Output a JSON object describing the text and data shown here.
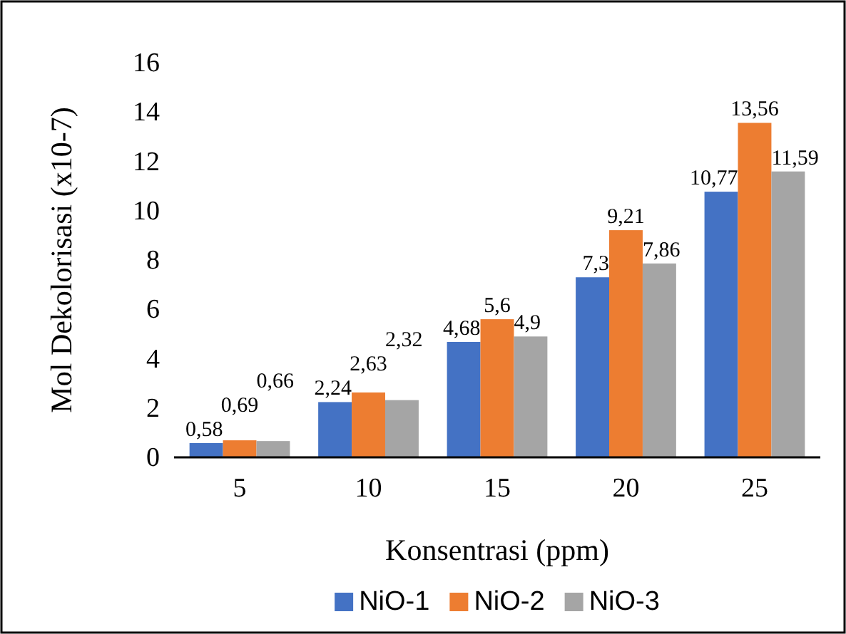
{
  "chart_data": {
    "type": "bar",
    "xlabel": "Konsentrasi (ppm)",
    "ylabel": "Mol Dekolorisasi (x10-7)",
    "categories": [
      "5",
      "10",
      "15",
      "20",
      "25"
    ],
    "series": [
      {
        "name": "NiO-1",
        "color": "#4472c4",
        "values": [
          0.58,
          2.24,
          4.68,
          7.3,
          10.77
        ],
        "value_labels": [
          "0,58",
          "2,24",
          "4,68",
          "7,3",
          "10,77"
        ]
      },
      {
        "name": "NiO-2",
        "color": "#ed7d31",
        "values": [
          0.69,
          2.63,
          5.6,
          9.21,
          13.56
        ],
        "value_labels": [
          "0,69",
          "2,63",
          "5,6",
          "9,21",
          "13,56"
        ]
      },
      {
        "name": "NiO-3",
        "color": "#a5a5a5",
        "values": [
          0.66,
          2.32,
          4.9,
          7.86,
          11.59
        ],
        "value_labels": [
          "0,66",
          "2,32",
          "4,9",
          "7,86",
          "11,59"
        ]
      }
    ],
    "ylim": [
      0,
      16
    ],
    "yticks": [
      0,
      2,
      4,
      6,
      8,
      10,
      12,
      14,
      16
    ],
    "grid": false,
    "legend": "bottom"
  }
}
